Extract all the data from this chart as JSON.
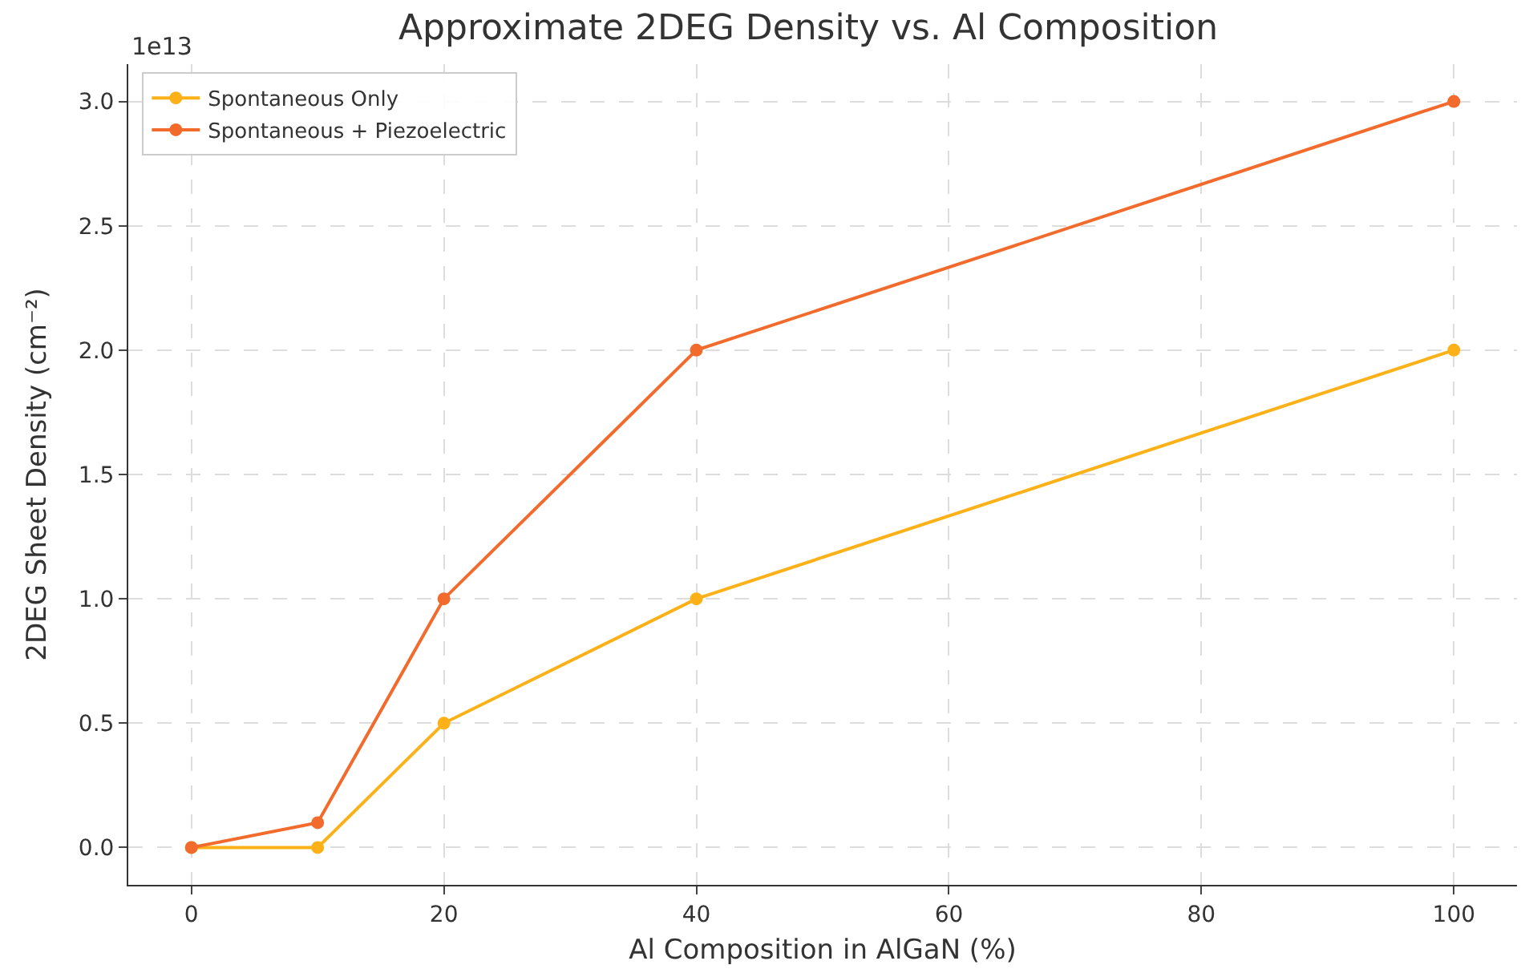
{
  "chart_data": {
    "type": "line",
    "title": "Approximate 2DEG Density vs. Al Composition",
    "xlabel": "Al Composition in AlGaN (%)",
    "ylabel": "2DEG Sheet Density (cm⁻²)",
    "x": [
      0,
      10,
      20,
      40,
      100
    ],
    "series": [
      {
        "name": "Spontaneous Only",
        "color": "#fbb117",
        "values": [
          0,
          0,
          0.5,
          1.0,
          2.0
        ]
      },
      {
        "name": "Spontaneous + Piezoelectric",
        "color": "#f26b2c",
        "values": [
          0,
          0.1,
          1.0,
          2.0,
          3.0
        ]
      }
    ],
    "xlim": [
      -5,
      105
    ],
    "xticks": [
      0,
      20,
      40,
      60,
      80,
      100
    ],
    "ylim": [
      -0.15,
      3.15
    ],
    "yticks": [
      {
        "value": 0,
        "label": "0.0"
      },
      0.5,
      {
        "value": 1,
        "label": "1.0"
      },
      1.5,
      {
        "value": 2,
        "label": "2.0"
      },
      2.5,
      {
        "value": 3,
        "label": "3.0"
      }
    ],
    "annotations": [
      "1e13"
    ],
    "grid": true,
    "legend": "top left",
    "marker": "circle",
    "line_style": "solid"
  }
}
